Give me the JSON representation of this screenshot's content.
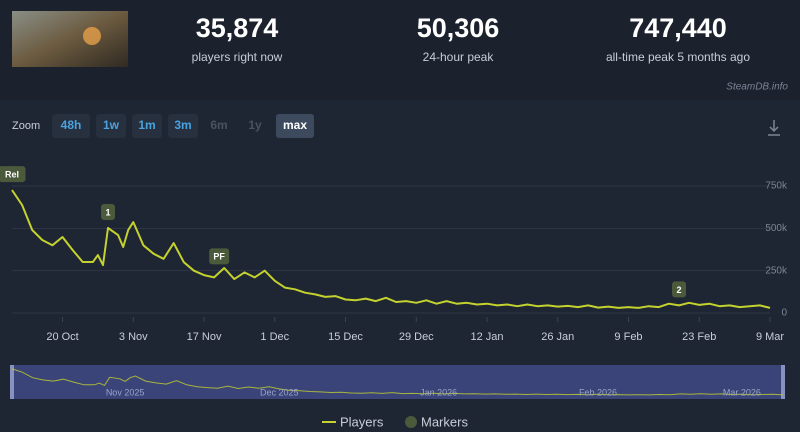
{
  "header": {
    "stats": [
      {
        "value": "35,874",
        "label": "players right now"
      },
      {
        "value": "50,306",
        "label": "24-hour peak"
      },
      {
        "value": "747,440",
        "label": "all-time peak 5 months ago"
      }
    ],
    "watermark": "SteamDB.info"
  },
  "zoom": {
    "label": "Zoom",
    "buttons": [
      "48h",
      "1w",
      "1m",
      "3m",
      "6m",
      "1y",
      "max"
    ]
  },
  "chart_data": {
    "type": "line",
    "x": [
      -10,
      -8,
      -6,
      -4,
      -2,
      0,
      2,
      4,
      6,
      7,
      8,
      9,
      11,
      12,
      13,
      14,
      16,
      18,
      20,
      22,
      24,
      26,
      28,
      30,
      32,
      34,
      36,
      38,
      40,
      42,
      44,
      46,
      48,
      50,
      52,
      54,
      56,
      58,
      60,
      62,
      64,
      66,
      68,
      70,
      72,
      74,
      76,
      78,
      80,
      82,
      84,
      86,
      88,
      90,
      92,
      94,
      96,
      98,
      100,
      102,
      104,
      106,
      108,
      110,
      112,
      114,
      116,
      118,
      120,
      122,
      124,
      126,
      128,
      130,
      132,
      134,
      136,
      138,
      140
    ],
    "series": [
      {
        "name": "Players",
        "color": "#c3d22e",
        "values": [
          726000,
          638000,
          490000,
          431000,
          400000,
          449000,
          372000,
          301000,
          301000,
          342000,
          283000,
          502000,
          460000,
          390000,
          490000,
          537000,
          400000,
          350000,
          320000,
          413000,
          300000,
          250000,
          224000,
          210000,
          266000,
          200000,
          240000,
          210000,
          250000,
          190000,
          150000,
          140000,
          120000,
          110000,
          95000,
          100000,
          80000,
          75000,
          85000,
          70000,
          90000,
          65000,
          70000,
          60000,
          75000,
          55000,
          70000,
          55000,
          60000,
          50000,
          55000,
          45000,
          50000,
          40000,
          50000,
          40000,
          45000,
          38000,
          42000,
          35000,
          45000,
          32000,
          38000,
          30000,
          35000,
          30000,
          40000,
          35000,
          55000,
          45000,
          60000,
          48000,
          55000,
          40000,
          45000,
          35000,
          40000,
          45000,
          30000
        ]
      }
    ],
    "markers_name": "Markers",
    "markers": [
      {
        "label": "Rel",
        "x": -10,
        "y": 726000
      },
      {
        "label": "1",
        "x": 9,
        "y": 502000
      },
      {
        "label": "PF",
        "x": 31,
        "y": 240000
      },
      {
        "label": "2",
        "x": 122,
        "y": 45000
      }
    ],
    "xlim": [
      -10,
      140
    ],
    "xticks": [
      {
        "value": 0,
        "label": "20 Oct"
      },
      {
        "value": 14,
        "label": "3 Nov"
      },
      {
        "value": 28,
        "label": "17 Nov"
      },
      {
        "value": 42,
        "label": "1 Dec"
      },
      {
        "value": 56,
        "label": "15 Dec"
      },
      {
        "value": 70,
        "label": "29 Dec"
      },
      {
        "value": 84,
        "label": "12 Jan"
      },
      {
        "value": 98,
        "label": "26 Jan"
      },
      {
        "value": 112,
        "label": "9 Feb"
      },
      {
        "value": 126,
        "label": "23 Feb"
      },
      {
        "value": 140,
        "label": "9 Mar"
      }
    ],
    "ylim": [
      0,
      750000
    ],
    "yticks": [
      0,
      {
        "value": 250000,
        "label": "250k"
      },
      {
        "value": 500000,
        "label": "500k"
      },
      {
        "value": 750000,
        "label": "750k"
      }
    ],
    "grid": true,
    "navigator_ticks": [
      {
        "value": 12,
        "label": "Nov 2025"
      },
      {
        "value": 42,
        "label": "Dec 2025"
      },
      {
        "value": 73,
        "label": "Jan 2026"
      },
      {
        "value": 104,
        "label": "Feb 2026"
      },
      {
        "value": 132,
        "label": "Mar 2026"
      }
    ]
  }
}
